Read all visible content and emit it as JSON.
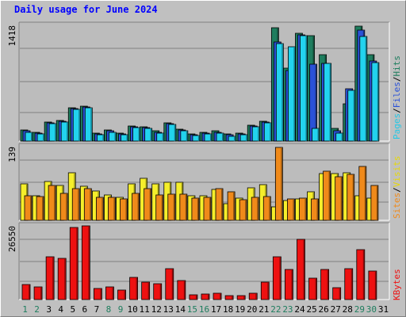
{
  "title": "Daily usage for June 2024",
  "colors": {
    "background": "#c0c0c0",
    "plot_bg": "#bcbcbc",
    "title": "#0000ff",
    "hits": "#1e7d5e",
    "files": "#2a52d8",
    "pages": "#22d3ee",
    "visits": "#f5ee2b",
    "sites": "#f08a1a",
    "kbytes": "#ee1111",
    "weekend_day": "#1e7d5e",
    "weekday": "#000000"
  },
  "legend": {
    "top": [
      {
        "text": "Pages",
        "color": "#22c8e6"
      },
      {
        "text": "/",
        "color": "#000000"
      },
      {
        "text": "Files",
        "color": "#2a52d8"
      },
      {
        "text": "/",
        "color": "#000000"
      },
      {
        "text": "Hits",
        "color": "#1e7d5e"
      }
    ],
    "middle": [
      {
        "text": "Sites",
        "color": "#f08a1a"
      },
      {
        "text": "/",
        "color": "#000000"
      },
      {
        "text": "Visits",
        "color": "#e6d80a"
      }
    ],
    "bottom": [
      {
        "text": "KBytes",
        "color": "#ee1111"
      }
    ]
  },
  "chart_data": [
    {
      "type": "bar",
      "panel": "top",
      "title": "Daily usage for June 2024",
      "categories": [
        "1",
        "2",
        "3",
        "4",
        "5",
        "6",
        "7",
        "8",
        "9",
        "10",
        "11",
        "12",
        "13",
        "14",
        "15",
        "16",
        "17",
        "18",
        "19",
        "20",
        "21",
        "22",
        "23",
        "24",
        "25",
        "26",
        "27",
        "28",
        "29",
        "30",
        "31"
      ],
      "ymax_label": "1418",
      "ylim": [
        0,
        1418
      ],
      "series": [
        {
          "name": "Hits",
          "values": [
            130,
            110,
            230,
            250,
            400,
            420,
            100,
            130,
            100,
            180,
            170,
            120,
            220,
            140,
            90,
            110,
            120,
            90,
            100,
            190,
            240,
            1370,
            880,
            1300,
            1270,
            1040,
            150,
            450,
            1390,
            1040,
            0
          ]
        },
        {
          "name": "Files",
          "values": [
            120,
            100,
            220,
            240,
            390,
            410,
            90,
            120,
            90,
            170,
            160,
            110,
            210,
            130,
            80,
            100,
            110,
            80,
            90,
            180,
            230,
            1200,
            850,
            1280,
            930,
            940,
            120,
            630,
            1340,
            970,
            0
          ]
        },
        {
          "name": "Pages",
          "values": [
            110,
            90,
            210,
            230,
            380,
            400,
            80,
            110,
            80,
            160,
            150,
            100,
            200,
            120,
            70,
            90,
            100,
            60,
            80,
            170,
            220,
            1180,
            1140,
            1270,
            150,
            940,
            100,
            610,
            1260,
            950,
            0
          ]
        }
      ]
    },
    {
      "type": "bar",
      "panel": "middle",
      "categories": [
        "1",
        "2",
        "3",
        "4",
        "5",
        "6",
        "7",
        "8",
        "9",
        "10",
        "11",
        "12",
        "13",
        "14",
        "15",
        "16",
        "17",
        "18",
        "19",
        "20",
        "21",
        "22",
        "23",
        "24",
        "25",
        "26",
        "27",
        "28",
        "29",
        "30",
        "31"
      ],
      "ymax_label": "139",
      "ylim": [
        0,
        139
      ],
      "series": [
        {
          "name": "Visits",
          "values": [
            67,
            45,
            72,
            64,
            88,
            63,
            54,
            47,
            42,
            68,
            78,
            67,
            70,
            70,
            46,
            45,
            57,
            30,
            41,
            60,
            66,
            25,
            37,
            40,
            53,
            87,
            86,
            88,
            45,
            41,
            0
          ]
        },
        {
          "name": "Sites",
          "values": [
            46,
            44,
            64,
            50,
            58,
            59,
            42,
            42,
            39,
            50,
            58,
            47,
            48,
            49,
            41,
            42,
            58,
            53,
            38,
            43,
            44,
            135,
            39,
            41,
            40,
            91,
            80,
            85,
            100,
            65,
            0
          ]
        }
      ]
    },
    {
      "type": "bar",
      "panel": "bottom",
      "categories": [
        "1",
        "2",
        "3",
        "4",
        "5",
        "6",
        "7",
        "8",
        "9",
        "10",
        "11",
        "12",
        "13",
        "14",
        "15",
        "16",
        "17",
        "18",
        "19",
        "20",
        "21",
        "22",
        "23",
        "24",
        "25",
        "26",
        "27",
        "28",
        "29",
        "30",
        "31"
      ],
      "ymax_label": "26550",
      "ylim": [
        0,
        26550
      ],
      "series": [
        {
          "name": "KBytes",
          "values": [
            5400,
            4500,
            15000,
            14500,
            25300,
            26000,
            3800,
            4600,
            3400,
            7700,
            6200,
            5600,
            10800,
            6800,
            1800,
            1900,
            2300,
            1400,
            1400,
            2100,
            6100,
            15000,
            10600,
            21300,
            7600,
            10500,
            4100,
            10800,
            17600,
            10200,
            0
          ]
        }
      ]
    }
  ],
  "weekend_days": [
    "1",
    "2",
    "8",
    "9",
    "15",
    "16",
    "22",
    "23",
    "29",
    "30"
  ]
}
